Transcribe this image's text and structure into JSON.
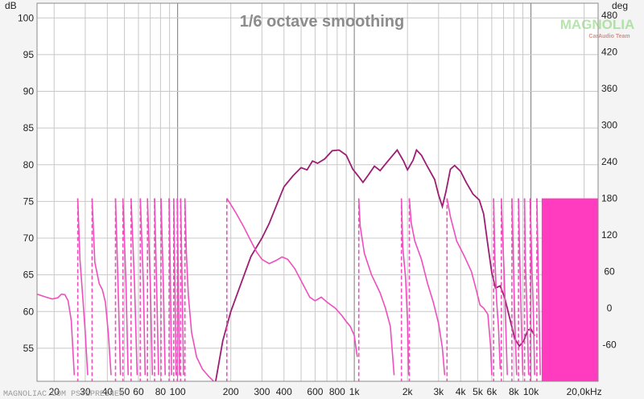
{
  "chart_data": {
    "type": "line",
    "title": "1/6 octave smoothing",
    "y_left_unit": "dB",
    "y_right_unit": "deg",
    "x_scale": "log",
    "xlim": [
      16,
      24000
    ],
    "ylim_left": [
      50.5,
      102
    ],
    "ylim_right": [
      -120,
      500
    ],
    "grid": true,
    "x_ticks": [
      {
        "v": 20,
        "label": "20"
      },
      {
        "v": 30,
        "label": "30"
      },
      {
        "v": 40,
        "label": "40"
      },
      {
        "v": 50,
        "label": "50"
      },
      {
        "v": 60,
        "label": "60"
      },
      {
        "v": 80,
        "label": "80"
      },
      {
        "v": 100,
        "label": "100"
      },
      {
        "v": 200,
        "label": "200"
      },
      {
        "v": 300,
        "label": "300"
      },
      {
        "v": 400,
        "label": "400"
      },
      {
        "v": 600,
        "label": "600"
      },
      {
        "v": 800,
        "label": "800"
      },
      {
        "v": 1000,
        "label": "1k"
      },
      {
        "v": 2000,
        "label": "2k"
      },
      {
        "v": 3000,
        "label": "3k"
      },
      {
        "v": 4000,
        "label": "4k"
      },
      {
        "v": 5000,
        "label": "5k"
      },
      {
        "v": 6000,
        "label": "6k"
      },
      {
        "v": 8000,
        "label": "8k"
      },
      {
        "v": 10000,
        "label": "10k"
      },
      {
        "v": 20000,
        "label": "20,0kHz"
      }
    ],
    "y_left_ticks": [
      55,
      60,
      65,
      70,
      75,
      80,
      85,
      90,
      95,
      100
    ],
    "y_right_ticks": [
      -60,
      0,
      60,
      120,
      180,
      240,
      300,
      360,
      420,
      480
    ],
    "series": [
      {
        "role": "magnitude",
        "axis": "left",
        "color": "#9c1e72",
        "points": [
          [
            160,
            49
          ],
          [
            180,
            56
          ],
          [
            200,
            60
          ],
          [
            230,
            64
          ],
          [
            260,
            67.5
          ],
          [
            300,
            70
          ],
          [
            330,
            72
          ],
          [
            370,
            75
          ],
          [
            400,
            77
          ],
          [
            450,
            78.5
          ],
          [
            500,
            79.6
          ],
          [
            540,
            79.3
          ],
          [
            580,
            80.5
          ],
          [
            620,
            80.2
          ],
          [
            680,
            80.8
          ],
          [
            750,
            81.9
          ],
          [
            820,
            82
          ],
          [
            900,
            81.3
          ],
          [
            980,
            79.4
          ],
          [
            1050,
            78.5
          ],
          [
            1120,
            77.6
          ],
          [
            1200,
            78.6
          ],
          [
            1300,
            79.8
          ],
          [
            1400,
            79.2
          ],
          [
            1550,
            80.5
          ],
          [
            1750,
            82
          ],
          [
            1900,
            80.5
          ],
          [
            2000,
            79.3
          ],
          [
            2150,
            80.6
          ],
          [
            2250,
            82
          ],
          [
            2400,
            81.3
          ],
          [
            2600,
            79.7
          ],
          [
            2850,
            78
          ],
          [
            3000,
            75.9
          ],
          [
            3150,
            74.3
          ],
          [
            3300,
            76.3
          ],
          [
            3500,
            79.4
          ],
          [
            3700,
            79.9
          ],
          [
            4000,
            79.1
          ],
          [
            4300,
            77.6
          ],
          [
            4700,
            76
          ],
          [
            5100,
            75.2
          ],
          [
            5400,
            73.3
          ],
          [
            5700,
            69.1
          ],
          [
            6000,
            65.3
          ],
          [
            6300,
            63.2
          ],
          [
            6700,
            63.5
          ],
          [
            7100,
            61.9
          ],
          [
            7600,
            59
          ],
          [
            8100,
            56.3
          ],
          [
            8600,
            55.3
          ],
          [
            9100,
            56
          ],
          [
            9600,
            57.5
          ],
          [
            10000,
            57.6
          ],
          [
            10500,
            56.7
          ]
        ]
      },
      {
        "role": "phase",
        "axis": "right",
        "color": "#ee4fbd",
        "points": [
          [
            16,
            23
          ],
          [
            18,
            18
          ],
          [
            19.5,
            15
          ],
          [
            21,
            17
          ],
          [
            22,
            23
          ],
          [
            23,
            22
          ],
          [
            24,
            12
          ],
          [
            25,
            -20
          ],
          [
            26,
            -110
          ],
          [
            27.2,
            180
          ],
          [
            28,
            80
          ],
          [
            29,
            20
          ],
          [
            30,
            -40
          ],
          [
            31,
            -110
          ],
          [
            32.8,
            180
          ],
          [
            34,
            75
          ],
          [
            36,
            40
          ],
          [
            37.5,
            30
          ],
          [
            39,
            10
          ],
          [
            40.5,
            -40
          ],
          [
            42,
            -110
          ],
          [
            44.5,
            180
          ],
          [
            46,
            40
          ],
          [
            47.5,
            -110
          ],
          [
            49,
            180
          ],
          [
            51,
            40
          ],
          [
            52.5,
            -110
          ],
          [
            54.5,
            180
          ],
          [
            57,
            40
          ],
          [
            59,
            -110
          ],
          [
            61.5,
            180
          ],
          [
            64,
            40
          ],
          [
            65.5,
            -110
          ],
          [
            67.5,
            180
          ],
          [
            70,
            40
          ],
          [
            72,
            -110
          ],
          [
            74,
            180
          ],
          [
            76,
            40
          ],
          [
            78,
            -110
          ],
          [
            80.5,
            180
          ],
          [
            83,
            40
          ],
          [
            85,
            -110
          ],
          [
            89.5,
            180
          ],
          [
            91,
            40
          ],
          [
            92.5,
            -110
          ],
          [
            95,
            180
          ],
          [
            96.5,
            40
          ],
          [
            98,
            -110
          ],
          [
            99.5,
            180
          ],
          [
            101,
            40
          ],
          [
            102.5,
            -110
          ],
          [
            104,
            180
          ],
          [
            106,
            40
          ],
          [
            108,
            -110
          ],
          [
            110,
            180
          ],
          [
            112,
            90
          ],
          [
            115,
            20
          ],
          [
            120,
            -40
          ],
          [
            128,
            -80
          ],
          [
            138,
            -100
          ],
          [
            150,
            -112
          ],
          [
            160,
            -120
          ],
          [
            190,
            180
          ],
          [
            200,
            170
          ],
          [
            215,
            155
          ],
          [
            235,
            135
          ],
          [
            260,
            110
          ],
          [
            280,
            92
          ],
          [
            300,
            80
          ],
          [
            330,
            73
          ],
          [
            360,
            78
          ],
          [
            390,
            84
          ],
          [
            420,
            80
          ],
          [
            460,
            65
          ],
          [
            500,
            45
          ],
          [
            560,
            18
          ],
          [
            600,
            12
          ],
          [
            650,
            18
          ],
          [
            700,
            10
          ],
          [
            780,
            0
          ],
          [
            850,
            -12
          ],
          [
            900,
            -22
          ],
          [
            950,
            -30
          ],
          [
            1000,
            -45
          ],
          [
            1040,
            -80
          ],
          [
            1060,
            180
          ],
          [
            1080,
            135
          ],
          [
            1140,
            90
          ],
          [
            1250,
            55
          ],
          [
            1400,
            25
          ],
          [
            1500,
            0
          ],
          [
            1600,
            -30
          ],
          [
            1680,
            -110
          ],
          [
            1850,
            180
          ],
          [
            1880,
            100
          ],
          [
            1950,
            50
          ],
          [
            2000,
            -20
          ],
          [
            2030,
            -110
          ],
          [
            2050,
            180
          ],
          [
            2100,
            140
          ],
          [
            2200,
            110
          ],
          [
            2400,
            80
          ],
          [
            2600,
            40
          ],
          [
            2800,
            10
          ],
          [
            3000,
            -25
          ],
          [
            3150,
            -65
          ],
          [
            3250,
            -110
          ],
          [
            3350,
            180
          ],
          [
            3500,
            150
          ],
          [
            3800,
            110
          ],
          [
            4200,
            85
          ],
          [
            4600,
            60
          ],
          [
            4900,
            30
          ],
          [
            5150,
            5
          ],
          [
            5400,
            0
          ],
          [
            5700,
            -10
          ],
          [
            5900,
            -60
          ],
          [
            6000,
            -110
          ],
          [
            6150,
            180
          ],
          [
            6250,
            80
          ],
          [
            6400,
            10
          ],
          [
            6550,
            -30
          ],
          [
            6700,
            -100
          ],
          [
            6800,
            180
          ],
          [
            6950,
            100
          ],
          [
            7050,
            60
          ],
          [
            7200,
            -30
          ],
          [
            7350,
            -110
          ],
          [
            7800,
            180
          ],
          [
            7950,
            80
          ],
          [
            8100,
            -20
          ],
          [
            8300,
            -110
          ],
          [
            8500,
            180
          ],
          [
            8650,
            80
          ],
          [
            8800,
            -10
          ],
          [
            9000,
            -110
          ],
          [
            9200,
            180
          ],
          [
            9300,
            80
          ],
          [
            9500,
            -10
          ],
          [
            9700,
            -110
          ],
          [
            9900,
            180
          ],
          [
            10100,
            80
          ],
          [
            10300,
            0
          ],
          [
            10500,
            -110
          ],
          [
            10800,
            180
          ],
          [
            11000,
            60
          ],
          [
            11300,
            -110
          ]
        ]
      }
    ],
    "phase_fill": {
      "from": 11500,
      "to": 24000,
      "top": 180,
      "bottom": -120,
      "color": "#ff3cc0"
    }
  },
  "watermark": {
    "logo": "MAGNOLIA",
    "tagline": "CarAudio Team",
    "source": "MAGNOLIAC.COM PSYSPREINEN"
  }
}
